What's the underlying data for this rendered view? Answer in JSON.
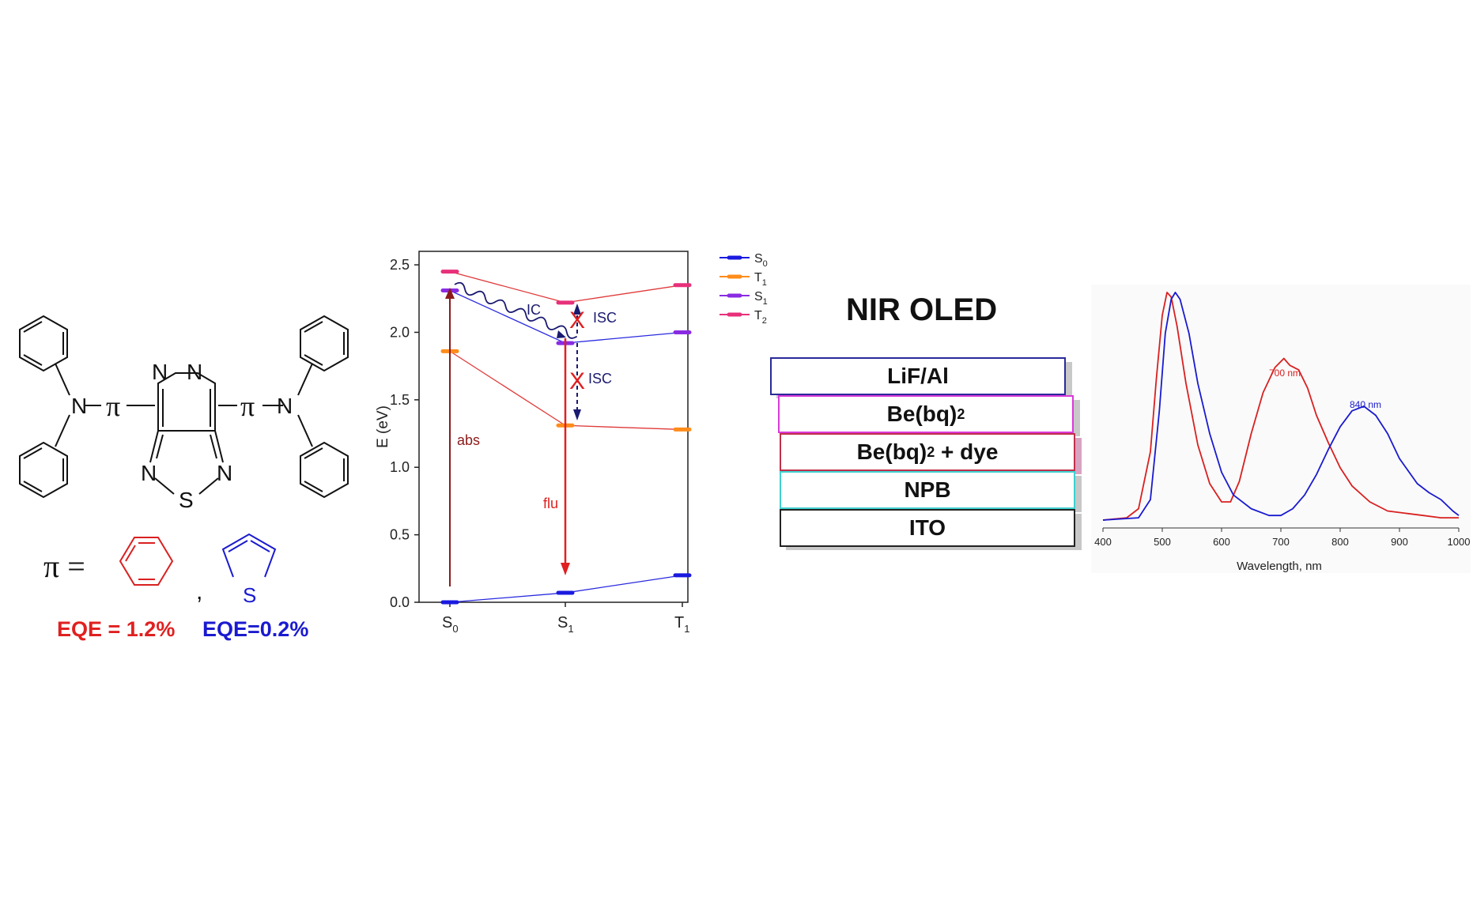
{
  "molecule": {
    "pi_symbol": "π",
    "n_atom": "N",
    "s_atom": "S",
    "pi_equals": "π =",
    "comma": ",",
    "eqe_phenyl": "EQE = 1.2%",
    "eqe_thiophene": "EQE=0.2%",
    "colors": {
      "phenyl": "#d92020",
      "thiophene": "#1a1ad0"
    }
  },
  "energy_diagram": {
    "ylabel": "E (eV)",
    "yticks": [
      "0.0",
      "0.5",
      "1.0",
      "1.5",
      "2.0",
      "2.5"
    ],
    "xticks": [
      {
        "main": "S",
        "sub": "0"
      },
      {
        "main": "S",
        "sub": "1"
      },
      {
        "main": "T",
        "sub": "1"
      }
    ],
    "legend": [
      {
        "main": "S",
        "sub": "0",
        "color": "#1a1ae0"
      },
      {
        "main": "T",
        "sub": "1",
        "color": "#ff8c1a"
      },
      {
        "main": "S",
        "sub": "1",
        "color": "#8a2be2"
      },
      {
        "main": "T",
        "sub": "2",
        "color": "#e8307a"
      }
    ],
    "annotations": {
      "abs": "abs",
      "flu": "flu",
      "ic": "IC",
      "isc_upper": "ISC",
      "isc_lower": "ISC"
    }
  },
  "device": {
    "title": "NIR OLED",
    "layers": [
      {
        "label": "LiF/Al",
        "sub": "",
        "suffix": "",
        "color": "#2a2a9a"
      },
      {
        "label": "Be(bq)",
        "sub": "2",
        "suffix": "",
        "color": "#d93ad9"
      },
      {
        "label": "Be(bq)",
        "sub": "2",
        "suffix": " + dye",
        "color": "#c0304a"
      },
      {
        "label": "NPB",
        "sub": "",
        "suffix": "",
        "color": "#40d0d0"
      },
      {
        "label": "ITO",
        "sub": "",
        "suffix": "",
        "color": "#222222"
      }
    ]
  },
  "chart_data": [
    {
      "type": "line",
      "title": "",
      "xlabel": "",
      "ylabel": "E (eV)",
      "x": [
        "S0",
        "S1",
        "T1"
      ],
      "ylim": [
        0,
        2.6
      ],
      "series": [
        {
          "name": "S0",
          "color": "#1a1ae0",
          "values": [
            0.0,
            0.07,
            0.2
          ]
        },
        {
          "name": "T1",
          "color": "#ff8c1a",
          "values": [
            1.86,
            1.31,
            1.28
          ]
        },
        {
          "name": "S1",
          "color": "#8a2be2",
          "values": [
            2.31,
            1.92,
            2.0
          ]
        },
        {
          "name": "T2",
          "color": "#e8307a",
          "values": [
            2.45,
            2.22,
            2.35
          ]
        }
      ]
    },
    {
      "type": "line",
      "title": "",
      "xlabel": "Wavelength, nm",
      "ylabel": "",
      "xlim": [
        400,
        1000
      ],
      "xticks": [
        400,
        500,
        600,
        700,
        800,
        900,
        1000
      ],
      "ylim": [
        0,
        1
      ],
      "annotations": [
        {
          "text": "700 nm",
          "color": "#d92020"
        },
        {
          "text": "840 nm",
          "color": "#1a1ad0"
        }
      ],
      "series": [
        {
          "color": "#d92020",
          "x": [
            400,
            440,
            460,
            480,
            490,
            500,
            508,
            515,
            525,
            540,
            560,
            580,
            600,
            615,
            630,
            650,
            670,
            690,
            705,
            715,
            730,
            745,
            760,
            780,
            800,
            820,
            850,
            880,
            910,
            940,
            970,
            1000
          ],
          "values": [
            0.0,
            0.01,
            0.05,
            0.3,
            0.62,
            0.9,
            1.0,
            0.98,
            0.85,
            0.6,
            0.33,
            0.16,
            0.08,
            0.08,
            0.17,
            0.38,
            0.56,
            0.67,
            0.71,
            0.68,
            0.66,
            0.58,
            0.46,
            0.34,
            0.23,
            0.15,
            0.08,
            0.04,
            0.03,
            0.02,
            0.01,
            0.01
          ]
        },
        {
          "color": "#1a1ad0",
          "x": [
            400,
            460,
            480,
            495,
            505,
            515,
            522,
            530,
            545,
            560,
            580,
            600,
            620,
            650,
            680,
            700,
            720,
            740,
            760,
            780,
            800,
            820,
            840,
            860,
            880,
            900,
            930,
            950,
            970,
            990,
            1000
          ],
          "values": [
            0.0,
            0.01,
            0.09,
            0.48,
            0.82,
            0.97,
            1.0,
            0.97,
            0.82,
            0.6,
            0.38,
            0.21,
            0.11,
            0.05,
            0.02,
            0.02,
            0.05,
            0.11,
            0.2,
            0.31,
            0.41,
            0.48,
            0.5,
            0.46,
            0.38,
            0.27,
            0.16,
            0.12,
            0.09,
            0.04,
            0.02
          ]
        }
      ]
    }
  ]
}
